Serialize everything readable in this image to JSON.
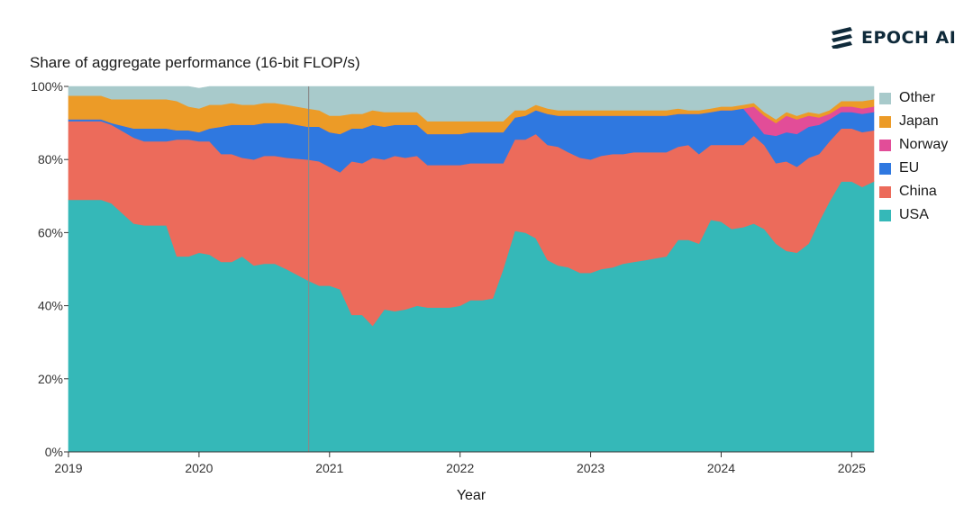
{
  "brand": {
    "name": "EPOCH AI",
    "icon": "epoch-logo-icon"
  },
  "chart_data": {
    "type": "area",
    "stacked": true,
    "normalized": true,
    "title": "Share of aggregate performance (16-bit FLOP/s)",
    "xlabel": "Year",
    "ylabel": "",
    "xlim": [
      2019.0,
      2025.17
    ],
    "ylim": [
      0,
      100
    ],
    "xticks": [
      2019,
      2020,
      2021,
      2022,
      2023,
      2024,
      2025
    ],
    "xtick_labels": [
      "2019",
      "2020",
      "2021",
      "2022",
      "2023",
      "2024",
      "2025"
    ],
    "yticks": [
      0,
      20,
      40,
      60,
      80,
      100
    ],
    "ytick_labels": [
      "0%",
      "20%",
      "40%",
      "60%",
      "80%",
      "100%"
    ],
    "legend_position": "right",
    "reference_line_x": 2020.84,
    "x": [
      2019.0,
      2019.25,
      2019.33,
      2019.5,
      2019.58,
      2019.75,
      2019.83,
      2019.92,
      2020.0,
      2020.08,
      2020.17,
      2020.25,
      2020.33,
      2020.42,
      2020.5,
      2020.58,
      2020.67,
      2020.83,
      2020.92,
      2021.0,
      2021.08,
      2021.17,
      2021.25,
      2021.33,
      2021.42,
      2021.5,
      2021.58,
      2021.67,
      2021.75,
      2021.83,
      2021.92,
      2022.0,
      2022.08,
      2022.17,
      2022.25,
      2022.33,
      2022.42,
      2022.5,
      2022.58,
      2022.67,
      2022.75,
      2022.83,
      2022.92,
      2023.0,
      2023.08,
      2023.17,
      2023.25,
      2023.33,
      2023.42,
      2023.5,
      2023.58,
      2023.67,
      2023.75,
      2023.83,
      2023.92,
      2024.0,
      2024.08,
      2024.17,
      2024.25,
      2024.33,
      2024.42,
      2024.5,
      2024.58,
      2024.67,
      2024.75,
      2024.83,
      2024.92,
      2025.0,
      2025.08,
      2025.17
    ],
    "series": [
      {
        "name": "USA",
        "color": "#35b8b8",
        "values": [
          69,
          69,
          68,
          62.5,
          62,
          62,
          53.5,
          53.5,
          54.5,
          54,
          52,
          52,
          53.5,
          51,
          51.5,
          51.5,
          50,
          47,
          45.5,
          45.5,
          44.5,
          37.5,
          37.5,
          34.5,
          39,
          38.5,
          39,
          40,
          39.5,
          39.5,
          39.5,
          40,
          41.5,
          41.5,
          42,
          50,
          60.5,
          60,
          58.5,
          52.5,
          51,
          50.5,
          49,
          49,
          50,
          50.5,
          51.5,
          52,
          52.5,
          53,
          53.5,
          58,
          58,
          57,
          63.5,
          63,
          61,
          61.5,
          62.5,
          61,
          57,
          55,
          54.5,
          57,
          63,
          68.5,
          74,
          74,
          72.5,
          74
        ]
      },
      {
        "name": "China",
        "color": "#ec6b5b",
        "values": [
          21.5,
          21.5,
          21.5,
          23.5,
          23,
          23,
          32,
          32,
          30.5,
          31,
          29.5,
          29.5,
          27,
          29,
          29.5,
          29.5,
          30.5,
          33,
          34,
          32.5,
          32,
          42,
          41.5,
          46,
          41,
          42.5,
          41.5,
          41,
          39,
          39,
          39,
          38.5,
          37.5,
          37.5,
          37,
          29,
          25,
          25.5,
          28.5,
          31.5,
          32.5,
          31.5,
          31.5,
          31,
          31,
          31,
          30,
          30,
          29.5,
          29,
          28.5,
          25.5,
          26,
          24.5,
          20.5,
          21,
          23,
          22.5,
          24,
          23,
          22,
          24.5,
          23.5,
          23.5,
          18.5,
          16.5,
          14.5,
          14.5,
          15,
          14
        ]
      },
      {
        "name": "EU",
        "color": "#2f78e0",
        "values": [
          0.5,
          0.5,
          0.5,
          2.5,
          3.5,
          3.5,
          2.5,
          2.5,
          2.5,
          3.5,
          7.5,
          8,
          9,
          9.5,
          9,
          9,
          9.5,
          9,
          9.5,
          9.5,
          10.5,
          9,
          9.5,
          9,
          9,
          8.5,
          9,
          8.5,
          8.5,
          8.5,
          8.5,
          8.5,
          8.5,
          8.5,
          8.5,
          8.5,
          6,
          6.5,
          6.5,
          8.5,
          8.5,
          10,
          11.5,
          12,
          11,
          10.5,
          10.5,
          10,
          10,
          10,
          10,
          9,
          8.5,
          11,
          9,
          9.5,
          9.5,
          10,
          4,
          3,
          7.5,
          8,
          9,
          8.5,
          8,
          6,
          4.5,
          4.5,
          5,
          5
        ]
      },
      {
        "name": "Norway",
        "color": "#e24d98",
        "values": [
          0,
          0,
          0,
          0,
          0,
          0,
          0,
          0,
          0,
          0,
          0,
          0,
          0,
          0,
          0,
          0,
          0,
          0,
          0,
          0,
          0,
          0,
          0,
          0,
          0,
          0,
          0,
          0,
          0,
          0,
          0,
          0,
          0,
          0,
          0,
          0,
          0,
          0,
          0,
          0,
          0,
          0,
          0,
          0,
          0,
          0,
          0,
          0,
          0,
          0,
          0,
          0,
          0,
          0,
          0,
          0,
          0,
          0,
          4,
          5,
          3.5,
          4.5,
          4,
          3,
          2,
          1.5,
          1.5,
          1.5,
          1.5,
          1.5
        ]
      },
      {
        "name": "Japan",
        "color": "#ec9b27",
        "values": [
          6.5,
          6.5,
          6.5,
          8,
          8,
          8,
          8,
          6.5,
          6.5,
          6.5,
          6,
          6,
          5.5,
          5.5,
          5.5,
          5.5,
          5,
          5,
          4.5,
          4.5,
          5,
          4,
          4,
          4,
          4,
          3.5,
          3.5,
          3.5,
          3.5,
          3.5,
          3.5,
          3.5,
          3,
          3,
          3,
          3,
          2,
          1.5,
          1.5,
          1.5,
          1.5,
          1.5,
          1.5,
          1.5,
          1.5,
          1.5,
          1.5,
          1.5,
          1.5,
          1.5,
          1.5,
          1.5,
          1,
          1,
          1,
          1,
          1,
          1,
          1,
          1,
          1,
          1,
          1,
          1,
          1,
          1,
          1.5,
          1.5,
          2,
          2
        ]
      },
      {
        "name": "Other",
        "color": "#a8cacb",
        "values": [
          2.5,
          2.5,
          3.5,
          3.5,
          3.5,
          3.5,
          4,
          5.5,
          5.5,
          5,
          5,
          4.5,
          5,
          5,
          4.5,
          4.5,
          5,
          6,
          6.5,
          8,
          8,
          7.5,
          7.5,
          6.5,
          7,
          7,
          7,
          7,
          9.5,
          9.5,
          9.5,
          9.5,
          9.5,
          9.5,
          9.5,
          9.5,
          6.5,
          6.5,
          5,
          6,
          6.5,
          6.5,
          6.5,
          6.5,
          6.5,
          6.5,
          6.5,
          6.5,
          6.5,
          6.5,
          6.5,
          6,
          6.5,
          6.5,
          6,
          5.5,
          5.5,
          5,
          4.5,
          7,
          9,
          7,
          8,
          7,
          7.5,
          6.5,
          4,
          4,
          4,
          3.5
        ]
      }
    ]
  }
}
